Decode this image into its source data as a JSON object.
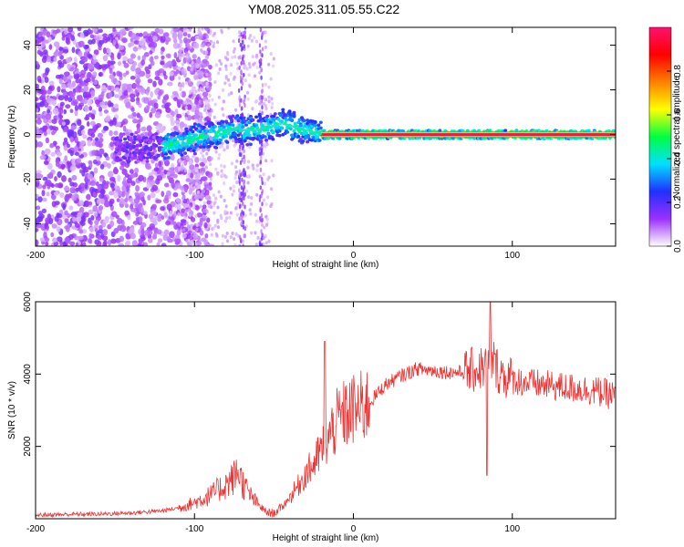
{
  "title": "YM08.2025.311.05.55.C22",
  "chart_data": [
    {
      "type": "heatmap",
      "xlabel": "Height of straight line (km)",
      "ylabel": "Frequency (Hz)",
      "xlim": [
        -200,
        165
      ],
      "ylim": [
        -50,
        48
      ],
      "xticks": [
        -200,
        -100,
        0,
        100
      ],
      "xtick_labels": [
        "-200",
        "-100",
        "0",
        "100"
      ],
      "yticks": [
        -40,
        -20,
        0,
        20,
        40
      ],
      "ytick_labels": [
        "-40",
        "-20",
        "0",
        "20",
        "40"
      ],
      "colorbar": {
        "label": "Normalized spectral amplitude",
        "range": [
          0,
          1
        ],
        "ticks": [
          0,
          0.2,
          0.4,
          0.6,
          0.8
        ],
        "tick_labels": [
          "0.0",
          "0.2",
          "0.4",
          "0.6",
          "0.8"
        ],
        "colors": [
          "#ffffff",
          "#9b30ff",
          "#2030ff",
          "#00e0ff",
          "#00ff40",
          "#ffff00",
          "#ff8000",
          "#ff0000",
          "#ff1070"
        ]
      },
      "ridge": {
        "description": "dominant frequency track",
        "x": [
          -140,
          -120,
          -110,
          -100,
          -90,
          -80,
          -75,
          -70,
          -60,
          -50,
          -45,
          -40,
          -35,
          -30,
          -20,
          -10,
          0,
          20,
          60,
          100,
          140,
          165
        ],
        "y": [
          -6,
          -5,
          -4,
          -2,
          0,
          1,
          3,
          2,
          2,
          4,
          5,
          4,
          3,
          2,
          0,
          0,
          0,
          0,
          0,
          0,
          0,
          0
        ]
      }
    },
    {
      "type": "line",
      "xlabel": "Height of straight line (km)",
      "ylabel": "SNR (10 * v/v)",
      "xlim": [
        -200,
        165
      ],
      "ylim": [
        0,
        6000
      ],
      "xticks": [
        -200,
        -100,
        0,
        100
      ],
      "xtick_labels": [
        "-200",
        "-100",
        "0",
        "100"
      ],
      "yticks": [
        2000,
        4000,
        6000
      ],
      "ytick_labels": [
        "2000",
        "4000",
        "6000"
      ],
      "color": "#ee3333",
      "series": [
        {
          "name": "SNR",
          "x": [
            -200,
            -180,
            -160,
            -140,
            -120,
            -110,
            -100,
            -90,
            -85,
            -80,
            -75,
            -72,
            -70,
            -65,
            -60,
            -55,
            -50,
            -45,
            -40,
            -35,
            -30,
            -25,
            -20,
            -18,
            -15,
            -10,
            -5,
            0,
            5,
            10,
            15,
            20,
            30,
            40,
            50,
            60,
            70,
            80,
            85,
            88,
            90,
            95,
            100,
            110,
            120,
            130,
            140,
            150,
            160,
            165
          ],
          "y": [
            100,
            120,
            130,
            160,
            220,
            300,
            450,
            650,
            800,
            950,
            1150,
            1350,
            1000,
            650,
            400,
            180,
            150,
            320,
            600,
            900,
            1250,
            1500,
            1900,
            2100,
            2300,
            2700,
            2900,
            3000,
            3050,
            3200,
            3450,
            3700,
            3950,
            4150,
            4100,
            4050,
            4050,
            4150,
            4300,
            4400,
            4150,
            3950,
            3850,
            3750,
            3700,
            3650,
            3600,
            3550,
            3450,
            3400
          ]
        }
      ]
    }
  ]
}
